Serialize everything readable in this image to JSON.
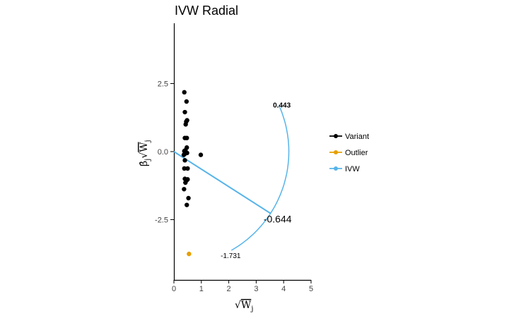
{
  "chart_data": {
    "type": "scatter",
    "title": "IVW Radial",
    "xlabel_radical": "√",
    "xlabel_main": "W",
    "xlabel_sub": "j",
    "ylabel_main": "β̂",
    "ylabel_sub1": "j",
    "ylabel_radical": "√",
    "ylabel_W": "W",
    "ylabel_sub2": "j",
    "xlim": [
      0,
      5
    ],
    "ylim": [
      -4.8,
      4.9
    ],
    "x_ticks": [
      0,
      1,
      2,
      3,
      4,
      5
    ],
    "x_tick_labels": [
      "0",
      "1",
      "2",
      "3",
      "4",
      "5"
    ],
    "y_ticks": [
      -2.5,
      0,
      2.5
    ],
    "y_tick_labels": [
      "-2.5",
      "0.0",
      "2.5"
    ],
    "colors": {
      "variant": "#000000",
      "outlier": "#E69F00",
      "ivw": "#56B4E9"
    },
    "series": [
      {
        "name": "Variant",
        "points": [
          [
            0.38,
            2.18
          ],
          [
            0.46,
            1.84
          ],
          [
            0.4,
            1.45
          ],
          [
            0.48,
            1.15
          ],
          [
            0.45,
            1.1
          ],
          [
            0.43,
            1.0
          ],
          [
            0.4,
            0.5
          ],
          [
            0.47,
            0.5
          ],
          [
            0.47,
            0.15
          ],
          [
            0.42,
            0.05
          ],
          [
            0.38,
            0.02
          ],
          [
            0.48,
            -0.05
          ],
          [
            0.4,
            -0.08
          ],
          [
            0.36,
            -0.12
          ],
          [
            0.98,
            -0.12
          ],
          [
            0.4,
            -0.32
          ],
          [
            0.38,
            -0.62
          ],
          [
            0.5,
            -0.62
          ],
          [
            0.4,
            -1.0
          ],
          [
            0.45,
            -1.05
          ],
          [
            0.47,
            -1.05
          ],
          [
            0.5,
            -1.02
          ],
          [
            0.42,
            -1.14
          ],
          [
            0.37,
            -1.38
          ],
          [
            0.53,
            -1.71
          ],
          [
            0.47,
            -1.96
          ]
        ]
      },
      {
        "name": "Outlier",
        "points": [
          [
            0.55,
            -3.76
          ]
        ]
      },
      {
        "name": "IVW",
        "slope": -0.644
      }
    ],
    "arc": {
      "radius": 4.19,
      "labels": [
        "0.443",
        "-0.644",
        "-1.731"
      ]
    },
    "legend": {
      "position": "right",
      "items": [
        "Variant",
        "Outlier",
        "IVW"
      ]
    }
  }
}
